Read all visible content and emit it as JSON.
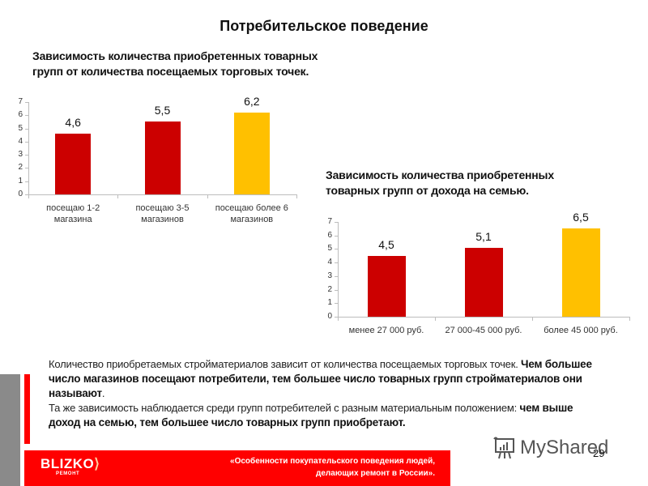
{
  "slide": {
    "title": "Потребительское поведение",
    "page_number": "29"
  },
  "chart1": {
    "title_line1": "Зависимость количества приобретенных товарных",
    "title_line2": "групп от количества посещаемых торговых точек."
  },
  "chart2": {
    "title_line1": "Зависимость количества приобретенных",
    "title_line2": "товарных групп от дохода на семью."
  },
  "body": {
    "p1_normal": "Количество приобретаемых стройматериалов зависит от количества посещаемых торговых точек. ",
    "p1_bold": "Чем большее число магазинов посещают потребители, тем большее число товарных групп стройматериалов они называют",
    "p1_end": ".",
    "p2_normal": "Та же зависимость наблюдается среди групп потребителей с разным материальным положением: ",
    "p2_bold": "чем выше доход на семью, тем большее число товарных групп приобретают."
  },
  "footer": {
    "logo": "BLIZKO",
    "logo_sub": "РЕМОНТ",
    "line1": "«Особенности покупательского поведения людей,",
    "line2": "делающих ремонт в России»."
  },
  "watermark": {
    "text": "MyShared",
    "icon": "presentation-board-icon"
  },
  "colors": {
    "bar_red": "#cc0000",
    "bar_yellow": "#ffc000",
    "accent_red": "#ff0000",
    "gray_block": "#8a8a8a"
  },
  "chart_data": [
    {
      "type": "bar",
      "title": "Зависимость количества приобретенных товарных групп от количества посещаемых торговых точек.",
      "categories": [
        "посещаю 1-2 магазина",
        "посещаю 3-5 магазинов",
        "посещаю более 6 магазинов"
      ],
      "categories_lines": [
        [
          "посещаю 1-2",
          "магазина"
        ],
        [
          "посещаю 3-5",
          "магазинов"
        ],
        [
          "посещаю более 6",
          "магазинов"
        ]
      ],
      "values": [
        4.6,
        5.5,
        6.2
      ],
      "value_labels": [
        "4,6",
        "5,5",
        "6,2"
      ],
      "bar_colors": [
        "#cc0000",
        "#cc0000",
        "#ffc000"
      ],
      "xlabel": "",
      "ylabel": "",
      "ylim": [
        0,
        7
      ],
      "yticks": [
        0,
        1,
        2,
        3,
        4,
        5,
        6,
        7
      ],
      "grid": false,
      "legend": null
    },
    {
      "type": "bar",
      "title": "Зависимость количества приобретенных товарных групп от дохода на семью.",
      "categories": [
        "менее 27 000 руб.",
        "27 000-45 000 руб.",
        "более 45 000 руб."
      ],
      "categories_lines": [
        [
          "менее 27 000 руб."
        ],
        [
          "27 000-45 000 руб."
        ],
        [
          "более 45 000 руб."
        ]
      ],
      "values": [
        4.5,
        5.1,
        6.5
      ],
      "value_labels": [
        "4,5",
        "5,1",
        "6,5"
      ],
      "bar_colors": [
        "#cc0000",
        "#cc0000",
        "#ffc000"
      ],
      "xlabel": "",
      "ylabel": "",
      "ylim": [
        0,
        7
      ],
      "yticks": [
        0,
        1,
        2,
        3,
        4,
        5,
        6,
        7
      ],
      "grid": false,
      "legend": null
    }
  ]
}
